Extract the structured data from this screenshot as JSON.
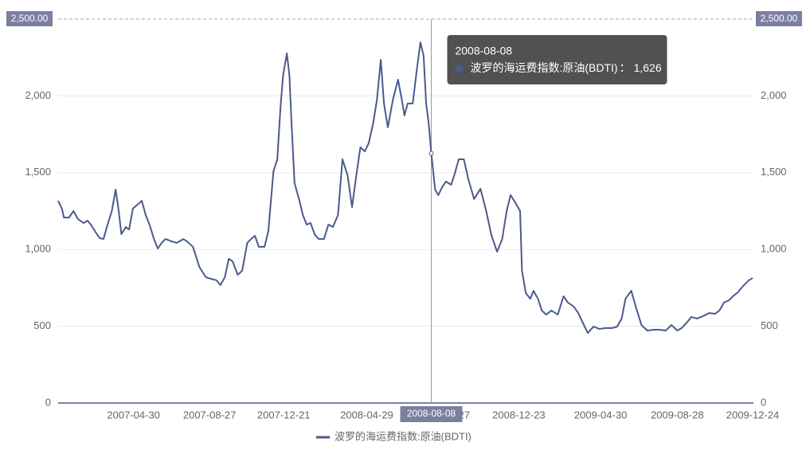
{
  "chart_data": {
    "type": "line",
    "x": [
      "2007-01-02",
      "2007-01-08",
      "2007-01-11",
      "2007-01-19",
      "2007-01-26",
      "2007-02-02",
      "2007-02-11",
      "2007-02-17",
      "2007-02-23",
      "2007-03-02",
      "2007-03-08",
      "2007-03-14",
      "2007-03-20",
      "2007-03-27",
      "2007-04-02",
      "2007-04-06",
      "2007-04-11",
      "2007-04-18",
      "2007-04-23",
      "2007-04-29",
      "2007-05-09",
      "2007-05-13",
      "2007-05-19",
      "2007-05-25",
      "2007-06-01",
      "2007-06-07",
      "2007-06-13",
      "2007-06-19",
      "2007-06-28",
      "2007-07-07",
      "2007-07-17",
      "2007-07-24",
      "2007-08-01",
      "2007-08-11",
      "2007-08-21",
      "2007-08-29",
      "2007-09-07",
      "2007-09-13",
      "2007-09-20",
      "2007-09-26",
      "2007-10-02",
      "2007-10-10",
      "2007-10-17",
      "2007-10-25",
      "2007-10-31",
      "2007-11-06",
      "2007-11-12",
      "2007-11-21",
      "2007-11-27",
      "2007-12-05",
      "2007-12-11",
      "2007-12-16",
      "2007-12-20",
      "2007-12-26",
      "2007-12-30",
      "2008-01-02",
      "2008-01-07",
      "2008-01-14",
      "2008-01-20",
      "2008-01-26",
      "2008-02-01",
      "2008-02-08",
      "2008-02-14",
      "2008-02-22",
      "2008-02-29",
      "2008-03-07",
      "2008-03-15",
      "2008-03-22",
      "2008-03-30",
      "2008-04-06",
      "2008-04-11",
      "2008-04-19",
      "2008-04-26",
      "2008-05-02",
      "2008-05-09",
      "2008-05-15",
      "2008-05-21",
      "2008-05-26",
      "2008-06-01",
      "2008-06-09",
      "2008-06-17",
      "2008-06-24",
      "2008-06-27",
      "2008-07-02",
      "2008-07-10",
      "2008-07-16",
      "2008-07-22",
      "2008-07-27",
      "2008-07-31",
      "2008-08-04",
      "2008-08-08",
      "2008-08-14",
      "2008-08-19",
      "2008-08-25",
      "2008-08-31",
      "2008-09-08",
      "2008-09-13",
      "2008-09-20",
      "2008-09-28",
      "2008-10-05",
      "2008-10-14",
      "2008-10-24",
      "2008-11-02",
      "2008-11-10",
      "2008-11-19",
      "2008-11-27",
      "2008-12-04",
      "2008-12-10",
      "2008-12-18",
      "2008-12-25",
      "2008-12-28",
      "2009-01-03",
      "2009-01-10",
      "2009-01-15",
      "2009-01-22",
      "2009-01-28",
      "2009-02-04",
      "2009-02-12",
      "2009-02-22",
      "2009-03-03",
      "2009-03-10",
      "2009-03-19",
      "2009-03-26",
      "2009-04-02",
      "2009-04-10",
      "2009-04-19",
      "2009-04-28",
      "2009-05-08",
      "2009-05-18",
      "2009-05-26",
      "2009-06-02",
      "2009-06-08",
      "2009-06-17",
      "2009-06-24",
      "2009-07-03",
      "2009-07-12",
      "2009-07-22",
      "2009-07-31",
      "2009-08-10",
      "2009-08-19",
      "2009-08-28",
      "2009-09-04",
      "2009-09-12",
      "2009-09-19",
      "2009-09-28",
      "2009-10-07",
      "2009-10-17",
      "2009-10-26",
      "2009-11-02",
      "2009-11-09",
      "2009-11-17",
      "2009-11-23",
      "2009-12-01",
      "2009-12-08",
      "2009-12-18",
      "2009-12-24"
    ],
    "series": [
      {
        "name": "波罗的海运费指数:原油(BDTI)",
        "color": "#4b5a8e",
        "values": [
          1317,
          1265,
          1208,
          1208,
          1250,
          1198,
          1172,
          1188,
          1157,
          1110,
          1074,
          1068,
          1157,
          1250,
          1390,
          1276,
          1100,
          1146,
          1130,
          1266,
          1302,
          1317,
          1224,
          1162,
          1068,
          1006,
          1043,
          1068,
          1053,
          1043,
          1068,
          1048,
          1017,
          887,
          820,
          809,
          799,
          768,
          820,
          939,
          923,
          835,
          861,
          1043,
          1068,
          1089,
          1017,
          1017,
          1120,
          1509,
          1587,
          1924,
          2132,
          2277,
          2132,
          1846,
          1432,
          1328,
          1224,
          1162,
          1172,
          1094,
          1068,
          1068,
          1162,
          1146,
          1224,
          1587,
          1483,
          1276,
          1432,
          1665,
          1639,
          1691,
          1820,
          1976,
          2235,
          1950,
          1795,
          1976,
          2106,
          1950,
          1872,
          1950,
          1950,
          2158,
          2349,
          2261,
          1950,
          1820,
          1626,
          1390,
          1354,
          1405,
          1442,
          1421,
          1483,
          1587,
          1587,
          1458,
          1328,
          1395,
          1250,
          1094,
          985,
          1068,
          1250,
          1354,
          1302,
          1250,
          861,
          716,
          679,
          731,
          679,
          602,
          576,
          602,
          576,
          695,
          654,
          628,
          586,
          524,
          456,
          498,
          482,
          488,
          488,
          498,
          550,
          679,
          731,
          628,
          508,
          472,
          477,
          477,
          472,
          508,
          472,
          488,
          524,
          560,
          550,
          565,
          586,
          581,
          602,
          654,
          669,
          695,
          721,
          757,
          799,
          814
        ]
      }
    ],
    "xlim": [
      "2007-01-02",
      "2009-12-24"
    ],
    "xticks": [
      "2007-04-30",
      "2007-08-27",
      "2007-12-21",
      "2008-04-29",
      "2008-08-27",
      "2008-12-23",
      "2009-04-30",
      "2009-08-28",
      "2009-12-24"
    ],
    "ylim": [
      0,
      2500
    ],
    "yticks": [
      0,
      500,
      {
        "value": 1000,
        "label": "1,000"
      },
      {
        "value": 1500,
        "label": "1,500"
      },
      {
        "value": 2000,
        "label": "2,000"
      },
      {
        "value": 2500,
        "label": "2,500.00"
      }
    ],
    "y2lim": [
      0,
      2500
    ],
    "y2ticks": [
      0,
      500,
      {
        "value": 1000,
        "label": "1,000"
      },
      {
        "value": 1500,
        "label": "1,500"
      },
      {
        "value": 2000,
        "label": "2,000"
      },
      {
        "value": 2500,
        "label": "2,500.00"
      }
    ],
    "grid": true,
    "legend": "bottom",
    "tooltip": {
      "date": "2008-08-08",
      "separator": "：",
      "value": 1626,
      "value_label": "1,626"
    }
  }
}
